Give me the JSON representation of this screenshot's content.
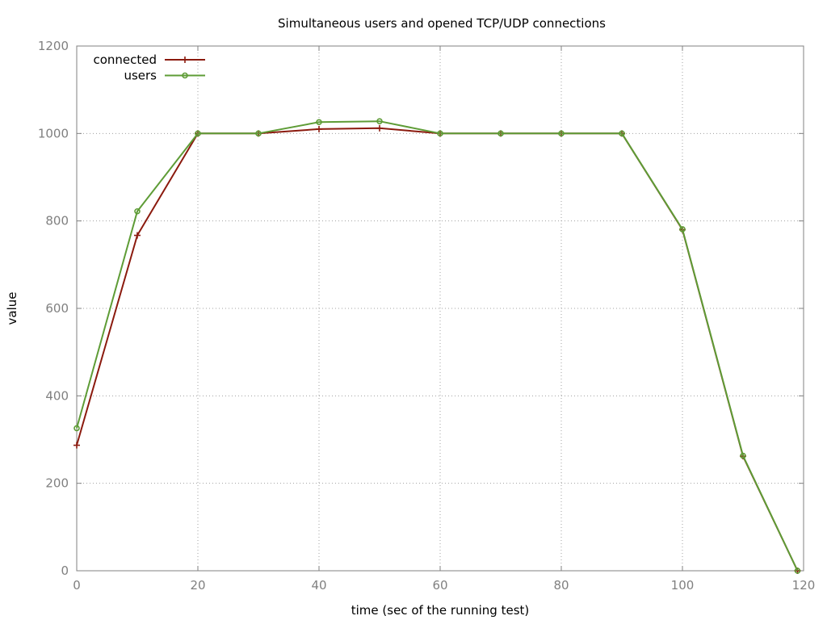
{
  "chart_data": {
    "type": "line",
    "title": "Simultaneous users and opened TCP/UDP connections",
    "xlabel": "time (sec of the running test)",
    "ylabel": "value",
    "xlim": [
      0,
      120
    ],
    "ylim": [
      0,
      1200
    ],
    "xticks": [
      0,
      20,
      40,
      60,
      80,
      100,
      120
    ],
    "yticks": [
      0,
      200,
      400,
      600,
      800,
      1000,
      1200
    ],
    "grid": true,
    "legend_position": "top-left",
    "series": [
      {
        "name": "connected",
        "color": "#8b1a0e",
        "marker": "plus",
        "x": [
          0,
          10,
          20,
          30,
          40,
          50,
          60,
          70,
          80,
          90,
          100,
          110,
          119
        ],
        "y": [
          287,
          767,
          1000,
          1000,
          1010,
          1012,
          1000,
          1000,
          1000,
          1000,
          780,
          262,
          0
        ]
      },
      {
        "name": "users",
        "color": "#5e9c36",
        "marker": "circle",
        "x": [
          0,
          10,
          20,
          30,
          40,
          50,
          60,
          70,
          80,
          90,
          100,
          110,
          119
        ],
        "y": [
          326,
          822,
          1000,
          1000,
          1026,
          1028,
          1000,
          1000,
          1000,
          1000,
          781,
          263,
          0
        ]
      }
    ]
  }
}
